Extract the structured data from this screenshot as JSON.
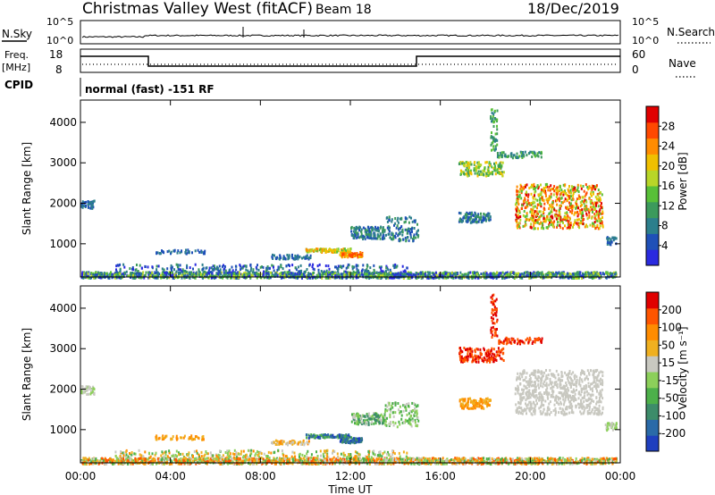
{
  "header": {
    "station": "Christmas Valley West (fitACF)",
    "beam": "Beam 18",
    "date": "18/Dec/2019"
  },
  "status_panels": {
    "nsky_label": "N.Sky",
    "nsearch_label": "N.Search",
    "freq_label_1": "Freq.",
    "freq_label_2": "[MHz]",
    "nave_label": "Nave",
    "cpid_label": "CPID",
    "cpid_text": "normal (fast) -151 RF",
    "noise_ticks": [
      "10^5",
      "10^0"
    ],
    "freq_ticks": [
      "18",
      "8"
    ],
    "nave_ticks": [
      "60",
      "0"
    ]
  },
  "chart_data": [
    {
      "type": "heatmap",
      "name": "power",
      "ylabel": "Slant Range [km]",
      "xlabel": "",
      "y_ticks": [
        "4000",
        "3000",
        "2000",
        "1000"
      ],
      "colorbar_label": "Power [dB]",
      "colorbar_ticks": [
        "28",
        "24",
        "20",
        "16",
        "12",
        "8",
        "4"
      ],
      "colorbar_colors": [
        "#2a2adf",
        "#1f50b8",
        "#2c7f8c",
        "#3c9a5c",
        "#58c038",
        "#b8d628",
        "#f0c000",
        "#ff8c00",
        "#ff4800",
        "#e00000"
      ]
    },
    {
      "type": "heatmap",
      "name": "velocity",
      "ylabel": "Slant Range [km]",
      "xlabel": "Time UT",
      "y_ticks": [
        "4000",
        "3000",
        "2000",
        "1000"
      ],
      "x_ticks": [
        "00:00",
        "04:00",
        "08:00",
        "12:00",
        "16:00",
        "20:00",
        "00:00"
      ],
      "colorbar_label": "Velocity [m s⁻¹]",
      "colorbar_ticks": [
        "200",
        "100",
        "50",
        "15",
        "-15",
        "-50",
        "-100",
        "-200"
      ],
      "colorbar_colors": [
        "#1f3fbf",
        "#2a6aa8",
        "#3d8c6a",
        "#4db04a",
        "#8ccf5a",
        "#c8c8c0",
        "#f0b020",
        "#ff8c00",
        "#ff5500",
        "#e00000"
      ]
    }
  ]
}
